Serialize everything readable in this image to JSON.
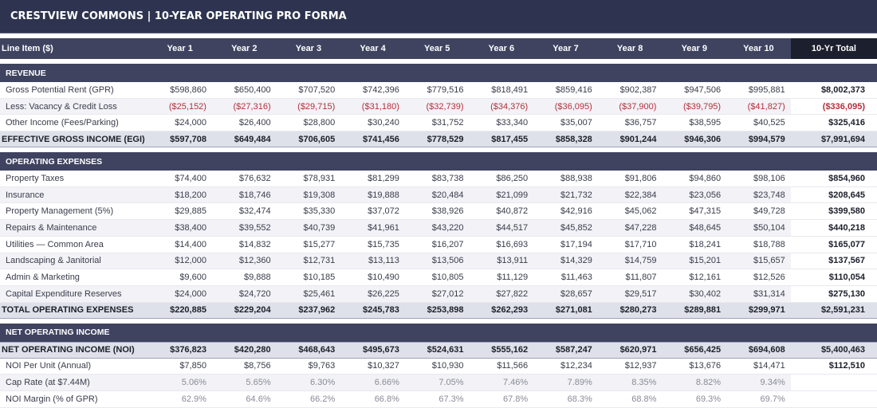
{
  "title": "CRESTVIEW COMMONS  |  10-YEAR OPERATING PRO FORMA",
  "header": {
    "label": "Line Item ($)",
    "years": [
      "Year 1",
      "Year 2",
      "Year 3",
      "Year 4",
      "Year 5",
      "Year 6",
      "Year 7",
      "Year 8",
      "Year 9",
      "Year 10"
    ],
    "total": "10-Yr Total"
  },
  "revenue": {
    "heading": "REVENUE",
    "rows": [
      {
        "label": "Gross Potential Rent (GPR)",
        "values": [
          "$598,860",
          "$650,400",
          "$707,520",
          "$742,396",
          "$779,516",
          "$818,491",
          "$859,416",
          "$902,387",
          "$947,506",
          "$995,881"
        ],
        "total": "$8,002,373"
      },
      {
        "label": "Less: Vacancy & Credit Loss",
        "values": [
          "($25,152)",
          "($27,316)",
          "($29,715)",
          "($31,180)",
          "($32,739)",
          "($34,376)",
          "($36,095)",
          "($37,900)",
          "($39,795)",
          "($41,827)"
        ],
        "total": "($336,095)"
      },
      {
        "label": "Other Income (Fees/Parking)",
        "values": [
          "$24,000",
          "$26,400",
          "$28,800",
          "$30,240",
          "$31,752",
          "$33,340",
          "$35,007",
          "$36,757",
          "$38,595",
          "$40,525"
        ],
        "total": "$325,416"
      }
    ],
    "summary": {
      "label": "EFFECTIVE GROSS INCOME (EGI)",
      "values": [
        "$597,708",
        "$649,484",
        "$706,605",
        "$741,456",
        "$778,529",
        "$817,455",
        "$858,328",
        "$901,244",
        "$946,306",
        "$994,579"
      ],
      "total": "$7,991,694"
    }
  },
  "opex": {
    "heading": "OPERATING EXPENSES",
    "rows": [
      {
        "label": "Property Taxes",
        "values": [
          "$74,400",
          "$76,632",
          "$78,931",
          "$81,299",
          "$83,738",
          "$86,250",
          "$88,938",
          "$91,806",
          "$94,860",
          "$98,106"
        ],
        "total": "$854,960"
      },
      {
        "label": "Insurance",
        "values": [
          "$18,200",
          "$18,746",
          "$19,308",
          "$19,888",
          "$20,484",
          "$21,099",
          "$21,732",
          "$22,384",
          "$23,056",
          "$23,748"
        ],
        "total": "$208,645"
      },
      {
        "label": "Property Management (5%)",
        "values": [
          "$29,885",
          "$32,474",
          "$35,330",
          "$37,072",
          "$38,926",
          "$40,872",
          "$42,916",
          "$45,062",
          "$47,315",
          "$49,728"
        ],
        "total": "$399,580"
      },
      {
        "label": "Repairs & Maintenance",
        "values": [
          "$38,400",
          "$39,552",
          "$40,739",
          "$41,961",
          "$43,220",
          "$44,517",
          "$45,852",
          "$47,228",
          "$48,645",
          "$50,104"
        ],
        "total": "$440,218"
      },
      {
        "label": "Utilities — Common Area",
        "values": [
          "$14,400",
          "$14,832",
          "$15,277",
          "$15,735",
          "$16,207",
          "$16,693",
          "$17,194",
          "$17,710",
          "$18,241",
          "$18,788"
        ],
        "total": "$165,077"
      },
      {
        "label": "Landscaping & Janitorial",
        "values": [
          "$12,000",
          "$12,360",
          "$12,731",
          "$13,113",
          "$13,506",
          "$13,911",
          "$14,329",
          "$14,759",
          "$15,201",
          "$15,657"
        ],
        "total": "$137,567"
      },
      {
        "label": "Admin & Marketing",
        "values": [
          "$9,600",
          "$9,888",
          "$10,185",
          "$10,490",
          "$10,805",
          "$11,129",
          "$11,463",
          "$11,807",
          "$12,161",
          "$12,526"
        ],
        "total": "$110,054"
      },
      {
        "label": "Capital Expenditure Reserves",
        "values": [
          "$24,000",
          "$24,720",
          "$25,461",
          "$26,225",
          "$27,012",
          "$27,822",
          "$28,657",
          "$29,517",
          "$30,402",
          "$31,314"
        ],
        "total": "$275,130"
      }
    ],
    "summary": {
      "label": "TOTAL OPERATING EXPENSES",
      "values": [
        "$220,885",
        "$229,204",
        "$237,962",
        "$245,783",
        "$253,898",
        "$262,293",
        "$271,081",
        "$280,273",
        "$289,881",
        "$299,971"
      ],
      "total": "$2,591,231"
    }
  },
  "noi": {
    "heading": "NET OPERATING INCOME",
    "summary": {
      "label": "NET OPERATING INCOME (NOI)",
      "values": [
        "$376,823",
        "$420,280",
        "$468,643",
        "$495,673",
        "$524,631",
        "$555,162",
        "$587,247",
        "$620,971",
        "$656,425",
        "$694,608"
      ],
      "total": "$5,400,463"
    },
    "rows": [
      {
        "label": "NOI Per Unit (Annual)",
        "values": [
          "$7,850",
          "$8,756",
          "$9,763",
          "$10,327",
          "$10,930",
          "$11,566",
          "$12,234",
          "$12,937",
          "$13,676",
          "$14,471"
        ],
        "total": "$112,510"
      },
      {
        "label": "Cap Rate (at $7.44M)",
        "values": [
          "5.06%",
          "5.65%",
          "6.30%",
          "6.66%",
          "7.05%",
          "7.46%",
          "7.89%",
          "8.35%",
          "8.82%",
          "9.34%"
        ],
        "total": ""
      },
      {
        "label": "NOI Margin (% of GPR)",
        "values": [
          "62.9%",
          "64.6%",
          "66.2%",
          "66.8%",
          "67.3%",
          "67.8%",
          "68.3%",
          "68.8%",
          "69.3%",
          "69.7%"
        ],
        "total": ""
      }
    ]
  },
  "colors": {
    "header_bg": "#2e3450",
    "section_bg": "#3f4360",
    "total_col_bg": "#1c1f2d",
    "negative": "#b0323a",
    "summary_bg": "#dfe1ea"
  }
}
